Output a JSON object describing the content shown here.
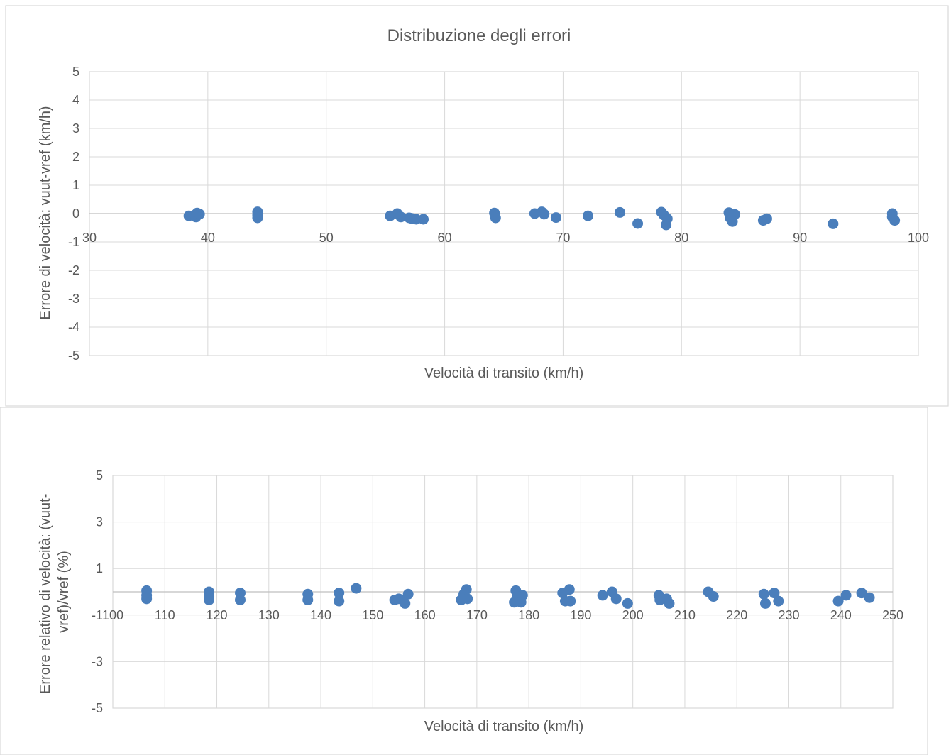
{
  "colors": {
    "marker": "#4a7ebb",
    "grid": "#d9d9d9",
    "text": "#595959"
  },
  "chart_data": [
    {
      "type": "scatter",
      "title": "Distribuzione degli errori",
      "xlabel": "Velocità di transito (km/h)",
      "ylabel": "Errore di velocità: vuut-vref  (km/h)",
      "xlim": [
        30,
        100
      ],
      "ylim": [
        -5,
        5
      ],
      "x_ticks": [
        "30",
        "40",
        "50",
        "60",
        "70",
        "80",
        "90",
        "100"
      ],
      "y_ticks": [
        "5",
        "4",
        "3",
        "2",
        "1",
        "0",
        "-1",
        "-2",
        "-3",
        "-4",
        "-5"
      ],
      "grid": true,
      "legend": "none",
      "series": [
        {
          "points": [
            [
              38.4,
              -0.08
            ],
            [
              38.9,
              -0.05
            ],
            [
              39.0,
              -0.12
            ],
            [
              39.1,
              0.02
            ],
            [
              39.3,
              -0.02
            ],
            [
              44.2,
              0.06
            ],
            [
              44.2,
              -0.05
            ],
            [
              44.2,
              -0.15
            ],
            [
              55.4,
              -0.08
            ],
            [
              56.0,
              0.0
            ],
            [
              56.3,
              -0.12
            ],
            [
              57.0,
              -0.15
            ],
            [
              57.2,
              -0.17
            ],
            [
              57.6,
              -0.2
            ],
            [
              58.2,
              -0.2
            ],
            [
              64.2,
              0.02
            ],
            [
              64.3,
              -0.15
            ],
            [
              67.6,
              0.0
            ],
            [
              68.2,
              0.06
            ],
            [
              68.4,
              -0.02
            ],
            [
              69.4,
              -0.14
            ],
            [
              72.1,
              -0.08
            ],
            [
              74.8,
              0.04
            ],
            [
              76.3,
              -0.35
            ],
            [
              78.3,
              0.05
            ],
            [
              78.5,
              -0.05
            ],
            [
              78.7,
              -0.4
            ],
            [
              78.8,
              -0.18
            ],
            [
              84.0,
              0.03
            ],
            [
              84.1,
              -0.15
            ],
            [
              84.3,
              -0.28
            ],
            [
              84.5,
              -0.03
            ],
            [
              86.9,
              -0.24
            ],
            [
              87.2,
              -0.18
            ],
            [
              92.8,
              -0.36
            ],
            [
              97.8,
              0.0
            ],
            [
              97.8,
              -0.12
            ],
            [
              98.0,
              -0.24
            ]
          ]
        }
      ]
    },
    {
      "type": "scatter",
      "title": "",
      "xlabel": "Velocità di transito (km/h)",
      "ylabel": "Errore relativo di velocità: (vuut-vref)/vref   (%)",
      "xlim": [
        100,
        250
      ],
      "ylim": [
        -5,
        5
      ],
      "x_ticks": [
        "100",
        "110",
        "120",
        "130",
        "140",
        "150",
        "160",
        "170",
        "180",
        "190",
        "200",
        "210",
        "220",
        "230",
        "240",
        "250"
      ],
      "y_ticks": [
        "5",
        "3",
        "1",
        "-1",
        "-3",
        "-5"
      ],
      "grid": true,
      "legend": "none",
      "series": [
        {
          "points": [
            [
              106.5,
              0.05
            ],
            [
              106.5,
              -0.15
            ],
            [
              106.5,
              -0.3
            ],
            [
              118.5,
              0.0
            ],
            [
              118.5,
              -0.2
            ],
            [
              118.5,
              -0.35
            ],
            [
              124.5,
              -0.05
            ],
            [
              124.5,
              -0.35
            ],
            [
              137.5,
              -0.1
            ],
            [
              137.5,
              -0.35
            ],
            [
              143.5,
              -0.05
            ],
            [
              143.5,
              -0.4
            ],
            [
              146.8,
              0.15
            ],
            [
              154.2,
              -0.35
            ],
            [
              155.0,
              -0.3
            ],
            [
              155.8,
              -0.35
            ],
            [
              156.2,
              -0.5
            ],
            [
              156.8,
              -0.1
            ],
            [
              167.0,
              -0.35
            ],
            [
              167.5,
              -0.1
            ],
            [
              168.0,
              0.1
            ],
            [
              168.2,
              -0.3
            ],
            [
              177.2,
              -0.45
            ],
            [
              177.5,
              0.05
            ],
            [
              177.8,
              -0.2
            ],
            [
              178.5,
              -0.45
            ],
            [
              178.8,
              -0.15
            ],
            [
              186.5,
              -0.05
            ],
            [
              187.0,
              -0.4
            ],
            [
              187.8,
              0.1
            ],
            [
              188.0,
              -0.4
            ],
            [
              194.2,
              -0.15
            ],
            [
              196.0,
              0.0
            ],
            [
              196.8,
              -0.3
            ],
            [
              199.0,
              -0.5
            ],
            [
              205.0,
              -0.15
            ],
            [
              205.2,
              -0.35
            ],
            [
              206.5,
              -0.3
            ],
            [
              207.0,
              -0.5
            ],
            [
              214.5,
              0.0
            ],
            [
              215.5,
              -0.2
            ],
            [
              225.2,
              -0.1
            ],
            [
              225.5,
              -0.5
            ],
            [
              227.2,
              -0.05
            ],
            [
              228.0,
              -0.4
            ],
            [
              239.5,
              -0.4
            ],
            [
              241.0,
              -0.15
            ],
            [
              244.0,
              -0.05
            ],
            [
              245.5,
              -0.25
            ]
          ]
        }
      ]
    }
  ]
}
